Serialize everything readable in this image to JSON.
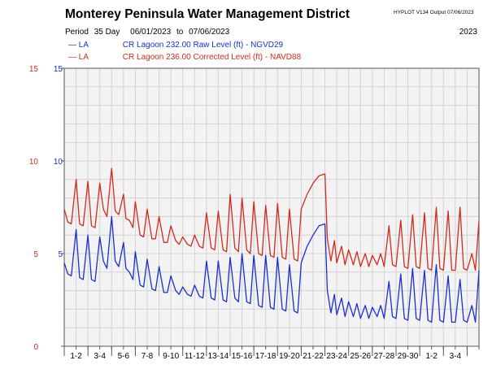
{
  "header": {
    "title": "Monterey Peninsula Water Management District",
    "hyplot": "HYPLOT V134  Output 07/06/2023",
    "period_label": "Period",
    "period_days": "35 Day",
    "start_date": "06/01/2023",
    "to": "to",
    "end_date": "07/06/2023",
    "year": "2023"
  },
  "legend": [
    {
      "code": "— LA",
      "text": "CR Lagoon  232.00 Raw Level (ft) - NGVD29",
      "color": "#1a2fd6"
    },
    {
      "code": "— LA",
      "text": "CR Lagoon  236.00 Corrected Level (ft) - NAVD88",
      "color": "#d42a1c"
    }
  ],
  "chart_data": {
    "type": "line",
    "x_unit": "day",
    "xlim": [
      0,
      35
    ],
    "ylim": [
      0,
      15
    ],
    "y_ticks": [
      0,
      5,
      10,
      15
    ],
    "y_tick_labels_left": [
      "0",
      "5",
      "10",
      "15"
    ],
    "y_tick_labels_right": [
      "5",
      "10",
      "15"
    ],
    "y_tick_label_colors": {
      "left": "#d42a1c",
      "right": "#1a2fd6"
    },
    "grid": true,
    "x_tick_labels": [
      "1-2",
      "3-4",
      "5-6",
      "7-8",
      "9-10",
      "11-12",
      "13-14",
      "15-16",
      "17-18",
      "19-20",
      "21-22",
      "23-24",
      "25-26",
      "27-28",
      "29-30",
      "1-2",
      "3-4"
    ],
    "series": [
      {
        "name": "CR Lagoon  232.00 Raw Level (ft) - NGVD29",
        "color": "#1a2fd6",
        "x": [
          0,
          0.3,
          0.6,
          1.0,
          1.3,
          1.6,
          2.0,
          2.3,
          2.6,
          3.0,
          3.3,
          3.6,
          4.0,
          4.3,
          4.6,
          5.0,
          5.2,
          5.5,
          5.8,
          6.0,
          6.4,
          6.7,
          7.0,
          7.4,
          7.7,
          8.0,
          8.4,
          8.7,
          9.0,
          9.4,
          9.7,
          10.0,
          10.4,
          10.7,
          11.0,
          11.4,
          11.7,
          12.0,
          12.4,
          12.7,
          13.0,
          13.4,
          13.7,
          14.0,
          14.4,
          14.7,
          15.0,
          15.4,
          15.7,
          16.0,
          16.4,
          16.7,
          17.0,
          17.4,
          17.7,
          18.0,
          18.4,
          18.7,
          19.0,
          19.4,
          19.7,
          20.0,
          20.5,
          21.0,
          21.5,
          22.0,
          22.2,
          22.5,
          22.8,
          23.0,
          23.4,
          23.7,
          24.0,
          24.4,
          24.7,
          25.0,
          25.4,
          25.7,
          26.0,
          26.4,
          26.7,
          27.0,
          27.4,
          27.7,
          28.0,
          28.4,
          28.7,
          29.0,
          29.4,
          29.7,
          30.0,
          30.4,
          30.7,
          31.0,
          31.4,
          31.7,
          32.0,
          32.4,
          32.7,
          33.0,
          33.4,
          33.7,
          34.0,
          34.4,
          34.7,
          35.0
        ],
        "values": [
          4.5,
          3.9,
          3.8,
          6.3,
          3.7,
          3.6,
          6.0,
          3.6,
          3.5,
          5.9,
          4.6,
          4.2,
          7.0,
          4.6,
          4.3,
          5.6,
          4.2,
          4.0,
          3.6,
          5.1,
          3.3,
          3.2,
          4.7,
          3.1,
          3.0,
          4.3,
          2.9,
          2.9,
          3.8,
          3.0,
          2.8,
          3.2,
          2.8,
          2.7,
          3.3,
          2.7,
          2.6,
          4.6,
          2.6,
          2.5,
          4.6,
          2.5,
          2.4,
          4.8,
          2.6,
          2.4,
          5.0,
          2.4,
          2.3,
          4.9,
          2.2,
          2.1,
          4.9,
          2.1,
          2.0,
          4.8,
          2.0,
          1.9,
          4.4,
          1.9,
          1.8,
          4.5,
          5.4,
          6.0,
          6.5,
          6.6,
          3.0,
          1.8,
          2.8,
          1.7,
          2.6,
          1.6,
          2.4,
          1.6,
          2.3,
          1.5,
          2.2,
          1.5,
          2.1,
          1.6,
          2.2,
          1.5,
          3.5,
          1.6,
          1.5,
          3.9,
          1.5,
          1.4,
          4.2,
          1.5,
          1.4,
          4.1,
          1.4,
          1.3,
          4.4,
          1.4,
          1.3,
          3.8,
          1.3,
          1.3,
          3.6,
          1.4,
          1.3,
          2.2,
          1.3,
          4.1
        ]
      },
      {
        "name": "CR Lagoon  236.00 Corrected Level (ft) - NAVD88",
        "color": "#d42a1c",
        "x": [
          0,
          0.3,
          0.6,
          1.0,
          1.3,
          1.6,
          2.0,
          2.3,
          2.6,
          3.0,
          3.3,
          3.6,
          4.0,
          4.3,
          4.6,
          5.0,
          5.2,
          5.5,
          5.8,
          6.0,
          6.4,
          6.7,
          7.0,
          7.4,
          7.7,
          8.0,
          8.4,
          8.7,
          9.0,
          9.4,
          9.7,
          10.0,
          10.4,
          10.7,
          11.0,
          11.4,
          11.7,
          12.0,
          12.4,
          12.7,
          13.0,
          13.4,
          13.7,
          14.0,
          14.4,
          14.7,
          15.0,
          15.4,
          15.7,
          16.0,
          16.4,
          16.7,
          17.0,
          17.4,
          17.7,
          18.0,
          18.4,
          18.7,
          19.0,
          19.4,
          19.7,
          20.0,
          20.5,
          21.0,
          21.5,
          22.0,
          22.2,
          22.5,
          22.8,
          23.0,
          23.4,
          23.7,
          24.0,
          24.4,
          24.7,
          25.0,
          25.4,
          25.7,
          26.0,
          26.4,
          26.7,
          27.0,
          27.4,
          27.7,
          28.0,
          28.4,
          28.7,
          29.0,
          29.4,
          29.7,
          30.0,
          30.4,
          30.7,
          31.0,
          31.4,
          31.7,
          32.0,
          32.4,
          32.7,
          33.0,
          33.4,
          33.7,
          34.0,
          34.4,
          34.7,
          35.0
        ],
        "values": [
          7.4,
          6.7,
          6.6,
          9.0,
          6.6,
          6.5,
          8.9,
          6.5,
          6.4,
          8.8,
          7.4,
          7.0,
          9.6,
          7.3,
          7.1,
          8.2,
          6.9,
          6.8,
          6.4,
          7.8,
          6.0,
          5.9,
          7.4,
          5.8,
          5.8,
          7.0,
          5.6,
          5.6,
          6.5,
          5.7,
          5.5,
          5.9,
          5.5,
          5.4,
          6.0,
          5.4,
          5.3,
          7.2,
          5.3,
          5.2,
          7.3,
          5.2,
          5.1,
          8.2,
          5.3,
          5.1,
          8.0,
          5.2,
          5.0,
          7.8,
          5.0,
          4.9,
          7.6,
          4.9,
          4.8,
          7.7,
          4.8,
          4.7,
          7.4,
          4.7,
          4.6,
          7.4,
          8.2,
          8.8,
          9.2,
          9.3,
          5.8,
          4.6,
          5.7,
          4.5,
          5.4,
          4.4,
          5.2,
          4.4,
          5.1,
          4.3,
          5.0,
          4.3,
          4.9,
          4.4,
          5.0,
          4.3,
          6.5,
          4.4,
          4.3,
          6.8,
          4.3,
          4.2,
          7.1,
          4.3,
          4.2,
          7.2,
          4.2,
          4.1,
          7.5,
          4.2,
          4.1,
          7.3,
          4.1,
          4.1,
          7.5,
          4.2,
          4.1,
          5.0,
          4.1,
          6.8
        ]
      }
    ]
  }
}
